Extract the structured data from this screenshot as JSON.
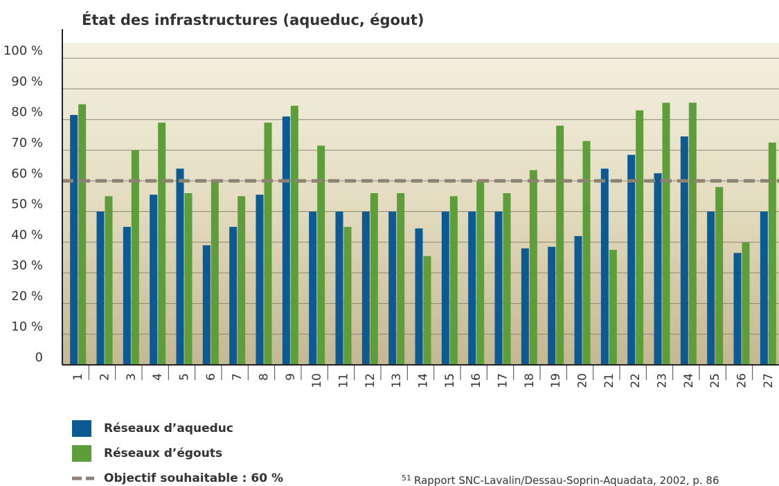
{
  "chart_data": {
    "type": "bar",
    "title": "État des infrastructures (aqueduc, égout)",
    "categories": [
      "1",
      "2",
      "3",
      "4",
      "5",
      "6",
      "7",
      "8",
      "9",
      "10",
      "11",
      "12",
      "13",
      "14",
      "15",
      "16",
      "17",
      "18",
      "19",
      "20",
      "21",
      "22",
      "23",
      "24",
      "25",
      "26",
      "27"
    ],
    "series": [
      {
        "name": "Réseaux d’aqueduc",
        "color": "#0b5a94",
        "values": [
          81.5,
          50,
          45,
          55.5,
          64,
          39,
          45,
          55.5,
          81,
          50,
          50,
          50,
          50,
          44.5,
          50,
          50,
          50,
          38,
          38.5,
          42,
          64,
          68.5,
          62.5,
          74.5,
          50,
          36.5,
          50
        ]
      },
      {
        "name": "Réseaux d’égouts",
        "color": "#5e9e3a",
        "values": [
          85,
          55,
          70,
          79,
          56,
          60.5,
          55,
          79,
          84.5,
          71.5,
          45,
          56,
          56,
          35.5,
          55,
          60,
          56,
          63.5,
          78,
          73,
          37.5,
          83,
          85.5,
          85.5,
          58,
          40,
          72.5
        ]
      }
    ],
    "target": {
      "name": "Objectif souhaitable : 60 %",
      "value": 60,
      "color": "#8c8372"
    },
    "ylim": [
      0,
      105
    ],
    "yticks": [
      0,
      {
        "value": 10,
        "label": "10 %"
      },
      {
        "value": 20,
        "label": "20 %"
      },
      {
        "value": 30,
        "label": "30 %"
      },
      {
        "value": 40,
        "label": "40 %"
      },
      {
        "value": 50,
        "label": "50 %"
      },
      {
        "value": 60,
        "label": "60 %"
      },
      {
        "value": 70,
        "label": "70 %"
      },
      {
        "value": 80,
        "label": "80 %"
      },
      {
        "value": 90,
        "label": "90 %"
      },
      {
        "value": 100,
        "label": "100 %"
      }
    ],
    "grid": true,
    "footnote": {
      "number": "51",
      "text": "Rapport SNC-Lavalin/Dessau-Soprin-Aquadata, 2002, p. 86"
    }
  }
}
